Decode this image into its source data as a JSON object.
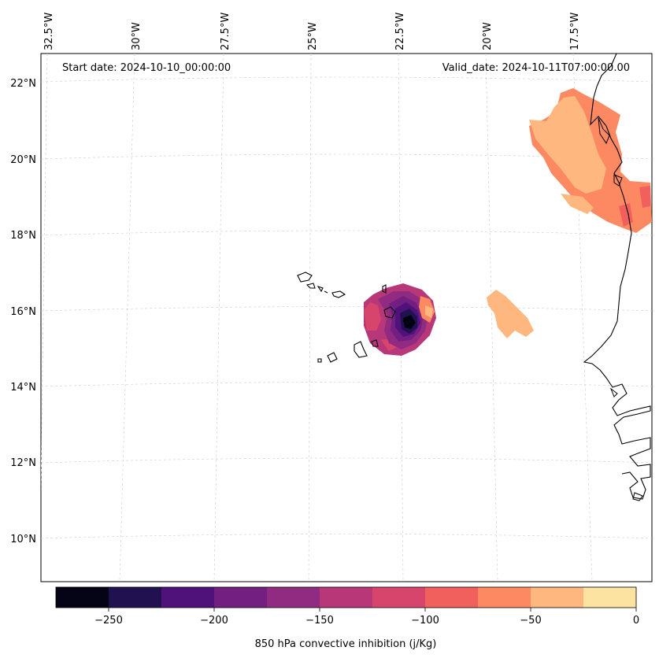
{
  "map": {
    "start_date": "Start date: 2024-10-10_00:00:00",
    "valid_date": "Valid_date: 2024-10-11T07:00:00.00",
    "lon_labels": [
      "32.5°W",
      "30°W",
      "27.5°W",
      "25°W",
      "22.5°W",
      "20°W",
      "17.5°W"
    ],
    "lat_labels": [
      "22°N",
      "20°N",
      "18°N",
      "16°N",
      "14°N",
      "12°N",
      "10°N"
    ]
  },
  "colorbar": {
    "label": "850 hPa convective inhibition (j/Kg)",
    "ticks": [
      "−250",
      "−200",
      "−150",
      "−100",
      "−50",
      "0"
    ],
    "levels": [
      -275,
      -250,
      -225,
      -200,
      -175,
      -150,
      -125,
      -100,
      -75,
      -50,
      -25,
      0
    ],
    "colors": [
      "#050416",
      "#221150",
      "#4f127b",
      "#721f81",
      "#912b81",
      "#b73779",
      "#d8456c",
      "#f1605d",
      "#fc8961",
      "#feb77e",
      "#fde3a1"
    ]
  }
}
